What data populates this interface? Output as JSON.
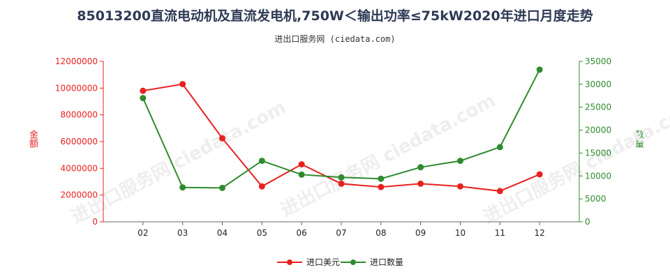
{
  "chart_data": {
    "type": "line",
    "title": "85013200直流电动机及直流发电机,750W＜输出功率≤75kW2020年进口月度走势",
    "subtitle": "进出口服务网 (ciedata.com)",
    "watermark": "进出口服务网 ciedata.com",
    "ylabel_left": "金额",
    "ylabel_right": "数量",
    "categories": [
      "02",
      "03",
      "04",
      "05",
      "06",
      "07",
      "08",
      "09",
      "10",
      "11",
      "12"
    ],
    "y_left": {
      "min": 0,
      "max": 12000000,
      "ticks": [
        "0",
        "2000000",
        "4000000",
        "6000000",
        "8000000",
        "10000000",
        "12000000"
      ]
    },
    "y_right": {
      "min": 0,
      "max": 35000,
      "ticks": [
        "0",
        "5000",
        "10000",
        "15000",
        "20000",
        "25000",
        "30000",
        "35000"
      ]
    },
    "series": [
      {
        "name": "进口美元",
        "axis": "left",
        "color": "#e8211f",
        "values": [
          9800000,
          10300000,
          6250000,
          2650000,
          4300000,
          2850000,
          2600000,
          2850000,
          2650000,
          2300000,
          3550000
        ]
      },
      {
        "name": "进口数量",
        "axis": "right",
        "color": "#2e8b2e",
        "values": [
          27000,
          7500,
          7400,
          13300,
          10300,
          9700,
          9400,
          11900,
          13300,
          16300,
          33200
        ]
      }
    ],
    "legend_position": "bottom-center",
    "grid": false
  }
}
